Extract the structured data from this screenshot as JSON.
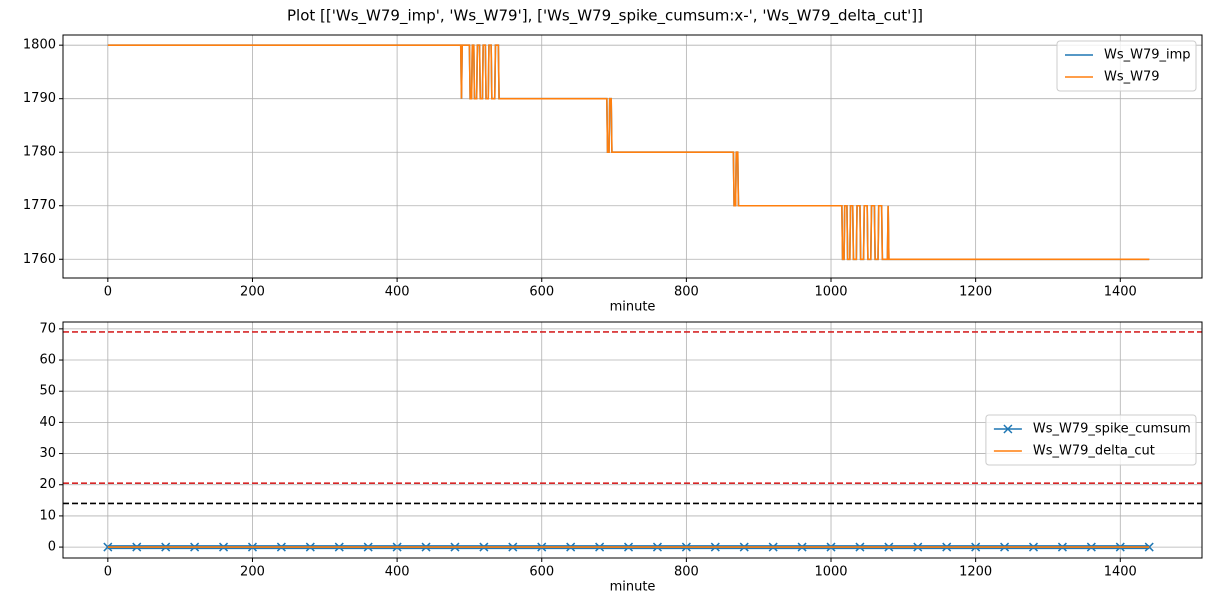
{
  "figure_title": "Plot [['Ws_W79_imp', 'Ws_W79'], ['Ws_W79_spike_cumsum:x-', 'Ws_W79_delta_cut']]",
  "chart_data": [
    {
      "type": "line",
      "xlabel": "minute",
      "x": [
        0,
        488,
        489,
        490,
        500,
        501,
        503,
        504,
        506,
        507,
        510,
        511,
        514,
        515,
        518,
        519,
        522,
        523,
        526,
        527,
        530,
        531,
        535,
        536,
        540,
        541,
        545,
        690,
        691,
        693,
        694,
        696,
        697,
        700,
        865,
        866,
        868,
        869,
        871,
        872,
        875,
        1015,
        1016,
        1018,
        1019,
        1022,
        1023,
        1026,
        1027,
        1030,
        1031,
        1035,
        1036,
        1040,
        1041,
        1045,
        1046,
        1050,
        1051,
        1055,
        1056,
        1060,
        1061,
        1065,
        1066,
        1070,
        1071,
        1078,
        1079,
        1080,
        1440
      ],
      "series": [
        {
          "name": "Ws_W79_imp",
          "color": "#1f77b4",
          "values": [
            1800,
            1800,
            1790,
            1800,
            1800,
            1790,
            1790,
            1800,
            1800,
            1790,
            1790,
            1800,
            1800,
            1790,
            1790,
            1800,
            1800,
            1790,
            1790,
            1800,
            1800,
            1790,
            1790,
            1800,
            1800,
            1790,
            1790,
            1790,
            1780,
            1780,
            1790,
            1790,
            1780,
            1780,
            1780,
            1770,
            1770,
            1780,
            1780,
            1770,
            1770,
            1770,
            1760,
            1760,
            1770,
            1770,
            1760,
            1760,
            1770,
            1770,
            1760,
            1760,
            1770,
            1770,
            1760,
            1760,
            1770,
            1770,
            1760,
            1760,
            1770,
            1770,
            1760,
            1760,
            1770,
            1770,
            1760,
            1760,
            1770,
            1760,
            1760
          ]
        },
        {
          "name": "Ws_W79",
          "color": "#ff7f0e",
          "values": [
            1800,
            1800,
            1790,
            1800,
            1800,
            1790,
            1790,
            1800,
            1800,
            1790,
            1790,
            1800,
            1800,
            1790,
            1790,
            1800,
            1800,
            1790,
            1790,
            1800,
            1800,
            1790,
            1790,
            1800,
            1800,
            1790,
            1790,
            1790,
            1780,
            1780,
            1790,
            1790,
            1780,
            1780,
            1780,
            1770,
            1770,
            1780,
            1780,
            1770,
            1770,
            1770,
            1760,
            1760,
            1770,
            1770,
            1760,
            1760,
            1770,
            1770,
            1760,
            1760,
            1770,
            1770,
            1760,
            1760,
            1770,
            1770,
            1760,
            1760,
            1770,
            1770,
            1760,
            1760,
            1770,
            1770,
            1760,
            1760,
            1770,
            1760,
            1760
          ]
        }
      ],
      "xlim": [
        -62,
        1513
      ],
      "xticks": [
        0,
        200,
        400,
        600,
        800,
        1000,
        1200,
        1400
      ],
      "ylim": [
        1756.5,
        1801.9
      ],
      "yticks": [
        1760,
        1770,
        1780,
        1790,
        1800
      ],
      "grid": true,
      "legend": "upper right"
    },
    {
      "type": "line",
      "xlabel": "minute",
      "x": [
        0,
        40,
        80,
        120,
        160,
        200,
        240,
        280,
        320,
        360,
        400,
        440,
        480,
        520,
        560,
        600,
        640,
        680,
        720,
        760,
        800,
        840,
        880,
        920,
        960,
        1000,
        1040,
        1080,
        1120,
        1160,
        1200,
        1240,
        1280,
        1320,
        1360,
        1400,
        1440
      ],
      "series": [
        {
          "name": "Ws_W79_spike_cumsum",
          "color": "#1f77b4",
          "marker": "x",
          "values": [
            0,
            0,
            0,
            0,
            0,
            0,
            0,
            0,
            0,
            0,
            0,
            0,
            0,
            0,
            0,
            0,
            0,
            0,
            0,
            0,
            0,
            0,
            0,
            0,
            0,
            0,
            0,
            0,
            0,
            0,
            0,
            0,
            0,
            0,
            0,
            0,
            0
          ]
        },
        {
          "name": "Ws_W79_delta_cut",
          "color": "#ff7f0e",
          "values": [
            0,
            0,
            0,
            0,
            0,
            0,
            0,
            0,
            0,
            0,
            0,
            0,
            0,
            0,
            0,
            0,
            0,
            0,
            0,
            0,
            0,
            0,
            0,
            0,
            0,
            0,
            0,
            0,
            0,
            0,
            0,
            0,
            0,
            0,
            0,
            0,
            0
          ]
        }
      ],
      "hlines": [
        {
          "value": 69,
          "color": "#d62728"
        },
        {
          "value": 20.5,
          "color": "#d62728"
        },
        {
          "value": 14,
          "color": "#000000"
        }
      ],
      "xlim": [
        -62,
        1513
      ],
      "xticks": [
        0,
        200,
        400,
        600,
        800,
        1000,
        1200,
        1400
      ],
      "ylim": [
        -3.5,
        72.2
      ],
      "yticks": [
        0,
        10,
        20,
        30,
        40,
        50,
        60,
        70
      ],
      "grid": true,
      "legend": "center right"
    }
  ]
}
